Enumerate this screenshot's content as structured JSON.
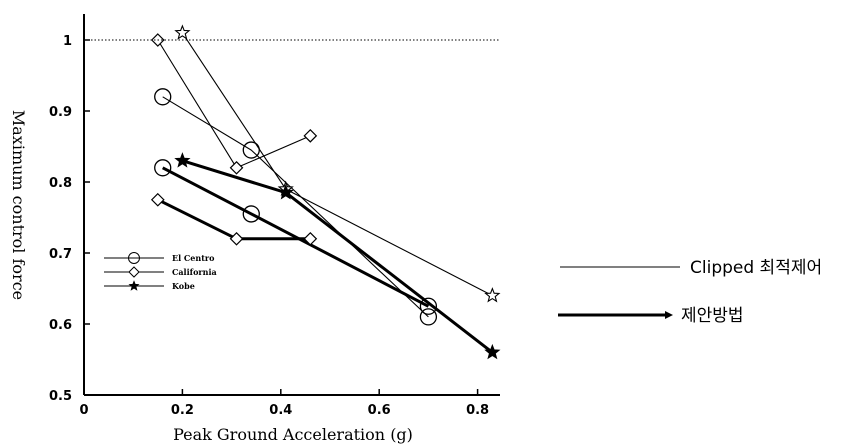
{
  "chart_data": {
    "type": "line",
    "xlabel": "Peak Ground Acceleration (g)",
    "ylabel": "Maximum control force",
    "xlim": [
      0,
      0.9
    ],
    "ylim": [
      0.5,
      1.05
    ],
    "x_ticks": [
      "0",
      "0.2",
      "0.4",
      "0.6",
      "0.8"
    ],
    "y_ticks": [
      "0.5",
      "0.6",
      "0.7",
      "0.8",
      "0.9",
      "1"
    ],
    "reference_line": {
      "y": 1.0,
      "style": "dotted"
    },
    "legend": [
      {
        "label": "El Centro",
        "marker": "circle"
      },
      {
        "label": "California",
        "marker": "diamond"
      },
      {
        "label": "Kobe",
        "marker": "star"
      }
    ],
    "side_legend": [
      {
        "label": "Clipped 최적제어",
        "style": "thin"
      },
      {
        "label": "제안방법",
        "style": "thick"
      }
    ],
    "series": [
      {
        "method": "clipped",
        "quake": "El Centro",
        "marker": "circle",
        "x": [
          0.16,
          0.34,
          0.7
        ],
        "y": [
          0.92,
          0.845,
          0.61
        ]
      },
      {
        "method": "clipped",
        "quake": "California",
        "marker": "diamond",
        "x": [
          0.15,
          0.31,
          0.46
        ],
        "y": [
          1.0,
          0.82,
          0.865
        ]
      },
      {
        "method": "clipped",
        "quake": "Kobe",
        "marker": "star",
        "x": [
          0.2,
          0.41,
          0.83
        ],
        "y": [
          1.01,
          0.79,
          0.64
        ]
      },
      {
        "method": "proposed",
        "quake": "El Centro",
        "marker": "circle",
        "x": [
          0.16,
          0.34,
          0.7
        ],
        "y": [
          0.82,
          0.755,
          0.625
        ]
      },
      {
        "method": "proposed",
        "quake": "California",
        "marker": "diamond",
        "x": [
          0.15,
          0.31,
          0.46
        ],
        "y": [
          0.775,
          0.72,
          0.72
        ]
      },
      {
        "method": "proposed",
        "quake": "Kobe",
        "marker": "star",
        "x": [
          0.2,
          0.41,
          0.83
        ],
        "y": [
          0.83,
          0.785,
          0.56
        ]
      }
    ]
  }
}
